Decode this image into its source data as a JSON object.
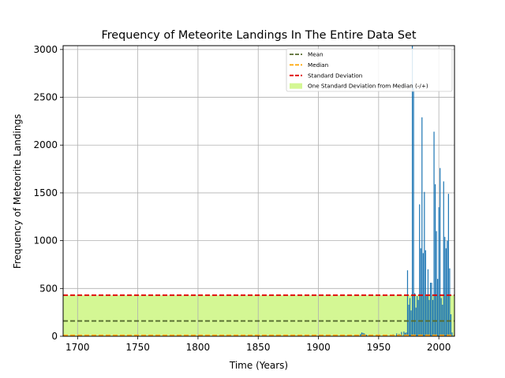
{
  "colors": {
    "bar": "#1f77b4",
    "mean": "#556b2f",
    "median": "#ffa500",
    "std": "#e00000",
    "band": "#d4f794",
    "grid": "#b0b0b0"
  },
  "chart_data": {
    "type": "bar",
    "title": "Frequency of Meteorite Landings In The Entire Data Set",
    "xlabel": "Time (Years)",
    "ylabel": "Frequency of Meteorite Landings",
    "xlim": [
      1688,
      2013
    ],
    "ylim": [
      0,
      3040
    ],
    "xticks": [
      1700,
      1750,
      1800,
      1850,
      1900,
      1950,
      2000
    ],
    "yticks": [
      0,
      500,
      1000,
      1500,
      2000,
      2500,
      3000
    ],
    "grid": true,
    "legend_position": "top-right",
    "reference_lines": {
      "mean": 160,
      "median": 10,
      "standard_deviation": 430,
      "band": [
        0,
        430
      ]
    },
    "legend": [
      {
        "label": "Mean",
        "kind": "dashed-line",
        "color": "#556b2f"
      },
      {
        "label": "Median",
        "kind": "dashed-line",
        "color": "#ffa500"
      },
      {
        "label": "Standard Deviation",
        "kind": "dashed-line",
        "color": "#e00000"
      },
      {
        "label": "One Standard Deviation from Median (-/+)",
        "kind": "patch",
        "color": "#d4f794"
      }
    ],
    "bars": [
      {
        "x": 1930,
        "y": 8
      },
      {
        "x": 1933,
        "y": 12
      },
      {
        "x": 1935,
        "y": 25
      },
      {
        "x": 1936,
        "y": 40
      },
      {
        "x": 1937,
        "y": 35
      },
      {
        "x": 1938,
        "y": 30
      },
      {
        "x": 1939,
        "y": 20
      },
      {
        "x": 1940,
        "y": 15
      },
      {
        "x": 1950,
        "y": 10
      },
      {
        "x": 1962,
        "y": 20
      },
      {
        "x": 1965,
        "y": 30
      },
      {
        "x": 1967,
        "y": 25
      },
      {
        "x": 1969,
        "y": 45
      },
      {
        "x": 1971,
        "y": 50
      },
      {
        "x": 1972,
        "y": 35
      },
      {
        "x": 1973,
        "y": 40
      },
      {
        "x": 1974,
        "y": 690
      },
      {
        "x": 1975,
        "y": 330
      },
      {
        "x": 1976,
        "y": 400
      },
      {
        "x": 1977,
        "y": 270
      },
      {
        "x": 1978,
        "y": 3040
      },
      {
        "x": 1979,
        "y": 2600
      },
      {
        "x": 1980,
        "y": 450
      },
      {
        "x": 1981,
        "y": 300
      },
      {
        "x": 1982,
        "y": 420
      },
      {
        "x": 1983,
        "y": 380
      },
      {
        "x": 1984,
        "y": 1380
      },
      {
        "x": 1985,
        "y": 920
      },
      {
        "x": 1986,
        "y": 2290
      },
      {
        "x": 1987,
        "y": 870
      },
      {
        "x": 1988,
        "y": 1510
      },
      {
        "x": 1989,
        "y": 900
      },
      {
        "x": 1990,
        "y": 420
      },
      {
        "x": 1991,
        "y": 700
      },
      {
        "x": 1992,
        "y": 380
      },
      {
        "x": 1993,
        "y": 560
      },
      {
        "x": 1994,
        "y": 560
      },
      {
        "x": 1995,
        "y": 380
      },
      {
        "x": 1996,
        "y": 2140
      },
      {
        "x": 1997,
        "y": 1590
      },
      {
        "x": 1998,
        "y": 1100
      },
      {
        "x": 1999,
        "y": 600
      },
      {
        "x": 2000,
        "y": 1350
      },
      {
        "x": 2001,
        "y": 1760
      },
      {
        "x": 2002,
        "y": 400
      },
      {
        "x": 2003,
        "y": 330
      },
      {
        "x": 2004,
        "y": 1620
      },
      {
        "x": 2005,
        "y": 1040
      },
      {
        "x": 2006,
        "y": 920
      },
      {
        "x": 2007,
        "y": 1000
      },
      {
        "x": 2008,
        "y": 1490
      },
      {
        "x": 2009,
        "y": 710
      },
      {
        "x": 2010,
        "y": 230
      },
      {
        "x": 2011,
        "y": 40
      }
    ]
  }
}
